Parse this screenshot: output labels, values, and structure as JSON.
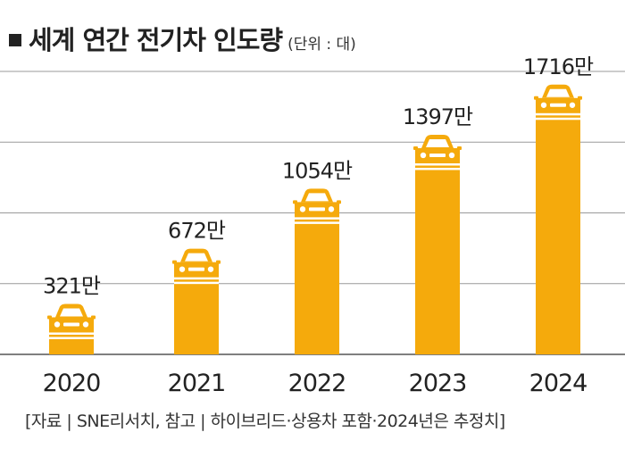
{
  "title": "세계 연간 전기차 인도량",
  "unit": "(단위 : 대)",
  "source": "[자료 | SNE리서치, 참고 | 하이브리드·상용차 포함·2024년은 추정치]",
  "colors": {
    "bar": "#F5AA0C",
    "grid": "#9a9a9a",
    "car_detail": "#ffffff",
    "text": "#222222"
  },
  "chart_data": {
    "type": "bar",
    "title": "세계 연간 전기차 인도량",
    "ylabel": "",
    "xlabel": "",
    "unit": "(단위 : 대)",
    "categories": [
      "2020",
      "2021",
      "2022",
      "2023",
      "2024"
    ],
    "values": [
      3210000,
      6720000,
      10540000,
      13970000,
      17160000
    ],
    "data_labels": [
      "321만",
      "672만",
      "1054만",
      "1397만",
      "1716만"
    ],
    "ylim": [
      0,
      18000000
    ],
    "grid": true,
    "legend": "none"
  }
}
